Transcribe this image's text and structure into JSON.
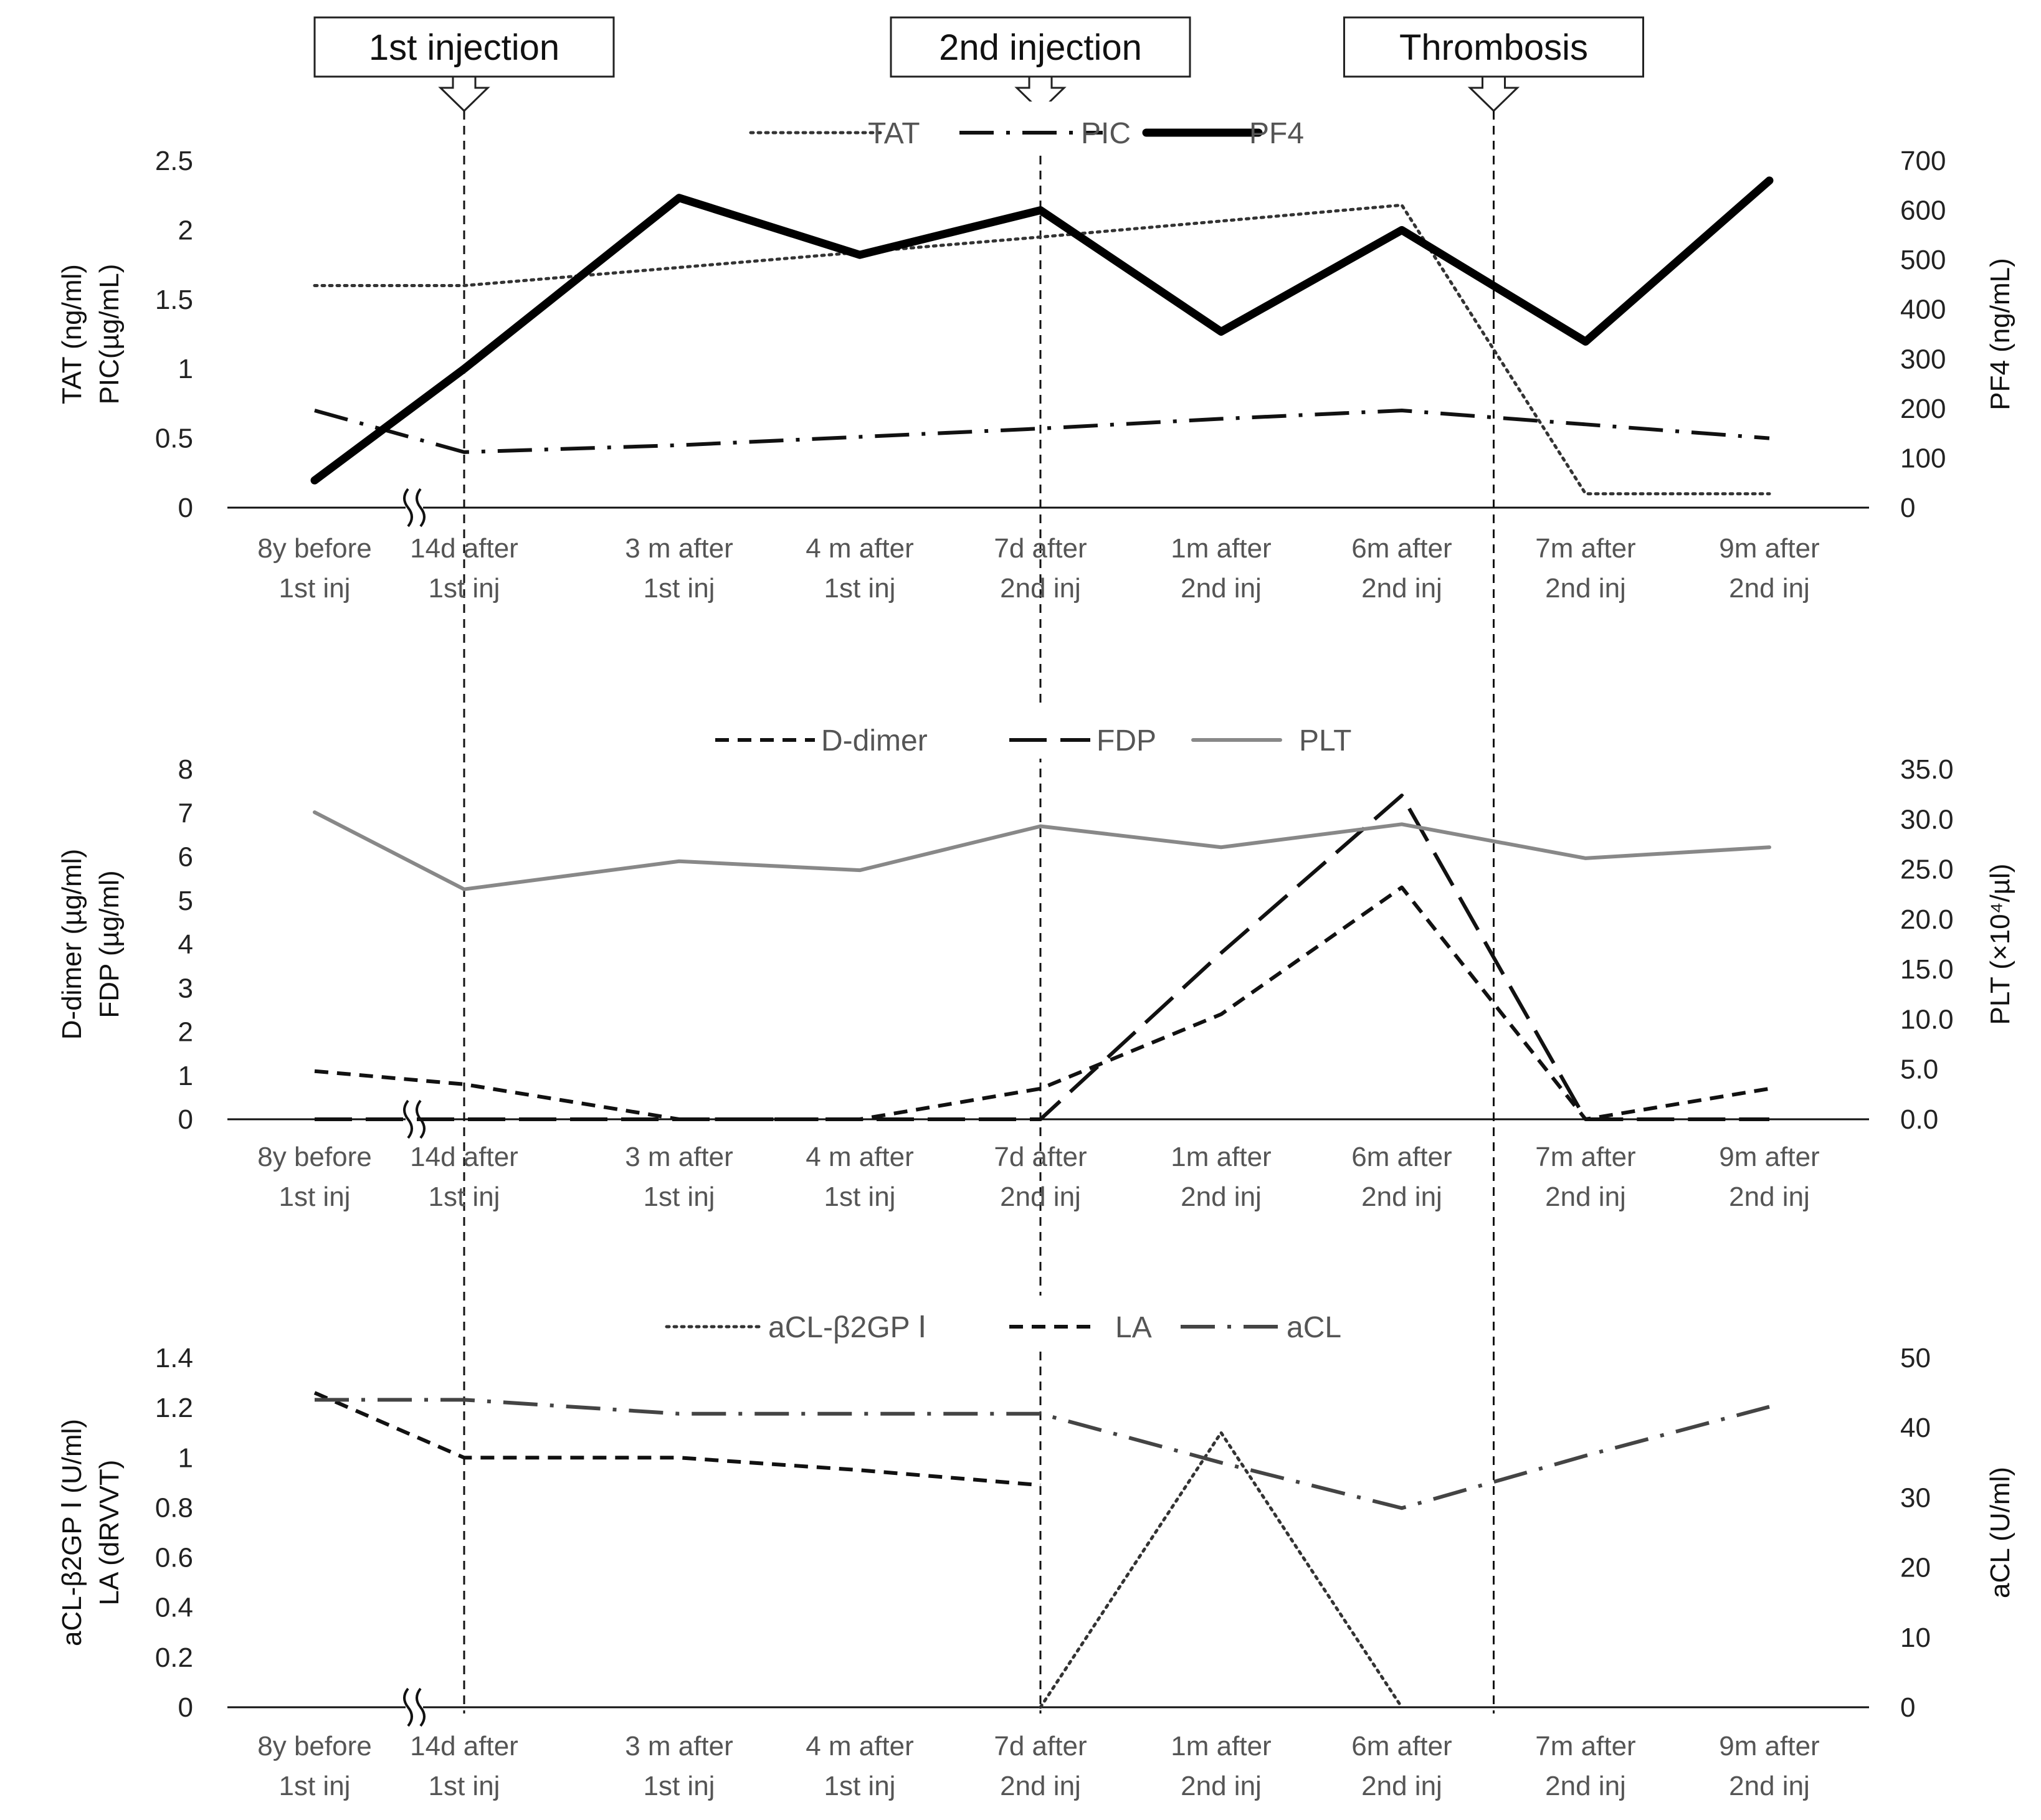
{
  "events": [
    {
      "label": "1st injection",
      "category_index": 1
    },
    {
      "label": "2nd injection",
      "category_index": 4
    },
    {
      "label": "Thrombosis",
      "category_index": 6.5
    }
  ],
  "chart_data": [
    {
      "type": "line",
      "categories": [
        "8y before\n1st inj",
        "14d after\n1st inj",
        "3 m after\n1st inj",
        "4 m after\n1st inj",
        "7d after\n2nd inj",
        "1m after\n2nd inj",
        "6m after\n2nd inj",
        "7m after\n2nd inj",
        "9m after\n2nd inj"
      ],
      "left_axis": {
        "label_lines": [
          "TAT  (ng/ml)",
          "PIC(µg/mL)"
        ],
        "ylim": [
          0,
          2.5
        ],
        "ticks": [
          0,
          0.5,
          1,
          1.5,
          2,
          2.5
        ],
        "tick_labels": [
          "0",
          "0.5",
          "1",
          "1.5",
          "2",
          "2.5"
        ]
      },
      "right_axis": {
        "label_lines": [
          "PF4  (ng/mL)"
        ],
        "ylim": [
          0,
          700
        ],
        "ticks": [
          0,
          100,
          200,
          300,
          400,
          500,
          600,
          700
        ],
        "tick_labels": [
          "0",
          "100",
          "200",
          "300",
          "400",
          "500",
          "600",
          "700"
        ]
      },
      "axis_break": true,
      "series": [
        {
          "name": "TAT",
          "axis": "left",
          "style": "dotted",
          "color": "#333333",
          "values": [
            1.6,
            1.6,
            null,
            null,
            1.95,
            null,
            2.18,
            0.1,
            0.1
          ]
        },
        {
          "name": "PIC",
          "axis": "left",
          "style": "dashdot",
          "color": "#111111",
          "values": [
            0.7,
            0.4,
            0.45,
            0.51,
            0.57,
            0.64,
            0.7,
            0.6,
            0.5
          ]
        },
        {
          "name": "PF4",
          "axis": "right",
          "style": "thick",
          "color": "#000000",
          "values": [
            55,
            280,
            625,
            510,
            600,
            355,
            560,
            335,
            660
          ]
        }
      ]
    },
    {
      "type": "line",
      "categories": [
        "8y before\n1st inj",
        "14d after\n1st inj",
        "3 m after\n1st inj",
        "4 m after\n1st inj",
        "7d after\n2nd inj",
        "1m after\n2nd inj",
        "6m after\n2nd inj",
        "7m after\n2nd inj",
        "9m after\n2nd inj"
      ],
      "left_axis": {
        "label_lines": [
          "D-dimer  (µg/ml)",
          "FDP (µg/ml)"
        ],
        "ylim": [
          0,
          8
        ],
        "ticks": [
          0,
          1,
          2,
          3,
          4,
          5,
          6,
          7,
          8
        ],
        "tick_labels": [
          "0",
          "1",
          "2",
          "3",
          "4",
          "5",
          "6",
          "7",
          "8"
        ]
      },
      "right_axis": {
        "label_lines": [
          "PLT (×10⁴/µl)"
        ],
        "ylim": [
          0,
          35
        ],
        "ticks": [
          0,
          5,
          10,
          15,
          20,
          25,
          30,
          35
        ],
        "tick_labels": [
          "0.0",
          "5.0",
          "10.0",
          "15.0",
          "20.0",
          "25.0",
          "30.0",
          "35.0"
        ]
      },
      "axis_break": true,
      "series": [
        {
          "name": "D-dimer",
          "axis": "left",
          "style": "dashed",
          "color": "#111111",
          "values": [
            1.1,
            0.8,
            0.0,
            0.0,
            0.7,
            2.4,
            5.3,
            0.0,
            0.7
          ]
        },
        {
          "name": "FDP",
          "axis": "left",
          "style": "longdash",
          "color": "#111111",
          "values": [
            0.0,
            0.0,
            null,
            null,
            0.0,
            3.8,
            7.4,
            0.0,
            0.0
          ]
        },
        {
          "name": "PLT",
          "axis": "right",
          "style": "solid",
          "color": "#888888",
          "values": [
            30.7,
            23.0,
            25.8,
            24.9,
            29.3,
            27.2,
            29.5,
            26.1,
            27.2
          ]
        }
      ]
    },
    {
      "type": "line",
      "categories": [
        "8y before\n1st inj",
        "14d after\n1st inj",
        "3 m after\n1st inj",
        "4 m after\n1st inj",
        "7d after\n2nd inj",
        "1m after\n2nd inj",
        "6m after\n2nd inj",
        "7m after\n2nd inj",
        "9m after\n2nd inj"
      ],
      "left_axis": {
        "label_lines": [
          "aCL-β2GP Ⅰ  (U/ml)",
          "LA  (dRVVT)"
        ],
        "ylim": [
          0,
          1.4
        ],
        "ticks": [
          0,
          0.2,
          0.4,
          0.6,
          0.8,
          1,
          1.2,
          1.4
        ],
        "tick_labels": [
          "0",
          "0.2",
          "0.4",
          "0.6",
          "0.8",
          "1",
          "1.2",
          "1.4"
        ]
      },
      "right_axis": {
        "label_lines": [
          "aCL  (U/ml)"
        ],
        "ylim": [
          0,
          50
        ],
        "ticks": [
          0,
          10,
          20,
          30,
          40,
          50
        ],
        "tick_labels": [
          "0",
          "10",
          "20",
          "30",
          "40",
          "50"
        ]
      },
      "axis_break": true,
      "series": [
        {
          "name": "aCL-β2GP Ⅰ",
          "axis": "left",
          "style": "dotted",
          "color": "#333333",
          "values": [
            null,
            null,
            null,
            null,
            0.0,
            1.1,
            0.0,
            null,
            null
          ]
        },
        {
          "name": "LA",
          "axis": "left",
          "style": "dashed",
          "color": "#111111",
          "values": [
            1.26,
            1.0,
            1.0,
            0.95,
            0.89,
            null,
            null,
            null,
            null
          ]
        },
        {
          "name": "aCL",
          "axis": "right",
          "style": "dashdot",
          "color": "#444444",
          "values": [
            44,
            44,
            42,
            42,
            42,
            35,
            28.5,
            36,
            43
          ]
        }
      ]
    }
  ]
}
